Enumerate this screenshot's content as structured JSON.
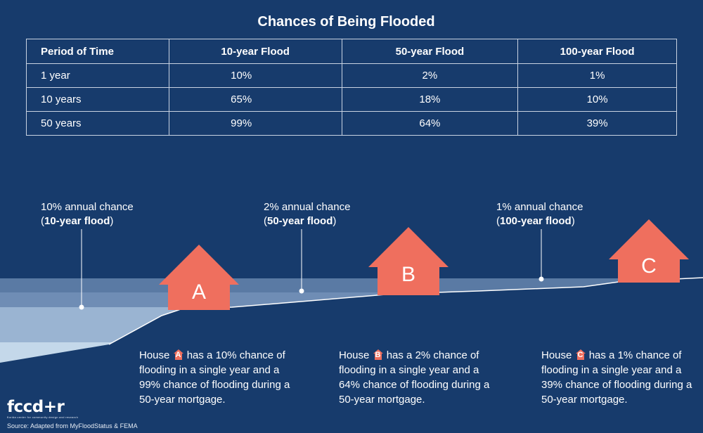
{
  "title": "Chances of Being Flooded",
  "table": {
    "headers": [
      "Period of Time",
      "10-year Flood",
      "50-year Flood",
      "100-year Flood"
    ],
    "rows": [
      [
        "1 year",
        "10%",
        "2%",
        "1%"
      ],
      [
        "10 years",
        "65%",
        "18%",
        "10%"
      ],
      [
        "50 years",
        "99%",
        "64%",
        "39%"
      ]
    ]
  },
  "callouts": [
    {
      "line1": "10% annual chance",
      "open": "(",
      "bold": "10-year flood",
      "close": ")"
    },
    {
      "line1": "2% annual chance",
      "open": "(",
      "bold": "50-year flood",
      "close": ")"
    },
    {
      "line1": "1% annual chance",
      "open": "(",
      "bold": "100-year flood",
      "close": ")"
    }
  ],
  "houses": [
    {
      "letter": "A",
      "prefix": "House",
      "text": "has a 10% chance of flooding in a single year and a 99% chance of flooding during a 50-year mortgage."
    },
    {
      "letter": "B",
      "prefix": "House",
      "text": "has a 2% chance of flooding in a single year and a 64% chance of flooding during a 50-year mortgage."
    },
    {
      "letter": "C",
      "prefix": "House",
      "text": "has a 1% chance of flooding in a single year and a 39% chance of flooding during a 50-year mortgage."
    }
  ],
  "logo": {
    "name": "fccd+r",
    "tagline": "florida center for community design and research"
  },
  "source": "Source: Adapted from MyFloodStatus & FEMA",
  "colors": {
    "background": "#173b6c",
    "house": "#ef6f5e",
    "water_light": "#9ab4d2",
    "water_pale": "#c4d8ea"
  }
}
